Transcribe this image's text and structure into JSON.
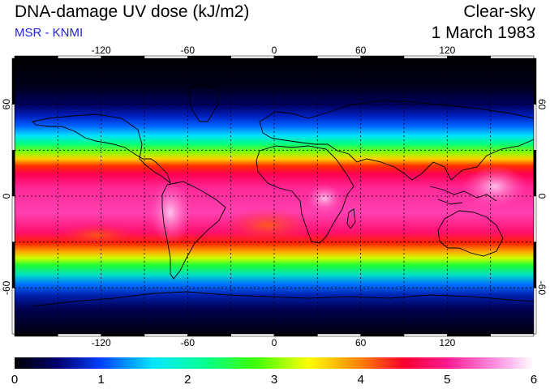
{
  "header": {
    "title": "DNA-damage UV dose (kJ/m2)",
    "source": "MSR - KNMI",
    "sky_condition": "Clear-sky",
    "date": "1 March 1983"
  },
  "map": {
    "longitude_ticks": [
      {
        "value": -120,
        "label": "-120"
      },
      {
        "value": -60,
        "label": "-60"
      },
      {
        "value": 0,
        "label": "0"
      },
      {
        "value": 60,
        "label": "60"
      },
      {
        "value": 120,
        "label": "120"
      }
    ],
    "latitude_ticks": [
      {
        "value": 60,
        "label": "60"
      },
      {
        "value": 0,
        "label": "0"
      },
      {
        "value": -60,
        "label": "-60"
      }
    ],
    "lon_range": [
      -180,
      180
    ],
    "lat_range": [
      -90,
      90
    ],
    "grid_lines_lon": [
      -150,
      -120,
      -90,
      -60,
      -30,
      0,
      30,
      60,
      90,
      120,
      150
    ],
    "grid_lines_lat": [
      -60,
      -30,
      0,
      30,
      60
    ],
    "coastlines": "continental outlines"
  },
  "colorbar": {
    "min": 0,
    "max": 6,
    "labels": [
      "0",
      "1",
      "2",
      "3",
      "4",
      "5",
      "6"
    ],
    "stops": [
      {
        "value": 0,
        "color": "#000000"
      },
      {
        "value": 0.5,
        "color": "#00006e"
      },
      {
        "value": 1,
        "color": "#0040ff"
      },
      {
        "value": 1.6,
        "color": "#00e6ff"
      },
      {
        "value": 2.2,
        "color": "#00ff90"
      },
      {
        "value": 2.8,
        "color": "#40ff00"
      },
      {
        "value": 3.4,
        "color": "#ffff00"
      },
      {
        "value": 4.0,
        "color": "#ff8000"
      },
      {
        "value": 4.5,
        "color": "#ff0030"
      },
      {
        "value": 5.0,
        "color": "#ff1a90"
      },
      {
        "value": 5.6,
        "color": "#ff99e6"
      },
      {
        "value": 6,
        "color": "#ffffff"
      }
    ]
  }
}
